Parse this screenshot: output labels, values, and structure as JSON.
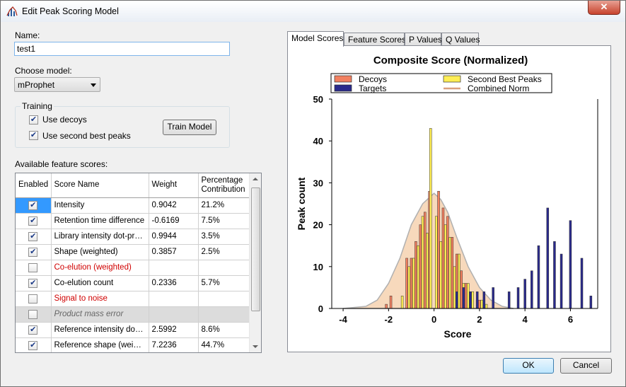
{
  "window": {
    "title": "Edit Peak Scoring Model",
    "close_label": "✕"
  },
  "name_field": {
    "label": "Name:",
    "value": "test1"
  },
  "model_select": {
    "label": "Choose model:",
    "value": "mProphet"
  },
  "training": {
    "legend": "Training",
    "use_decoys": {
      "label": "Use decoys",
      "checked": true
    },
    "use_second_best": {
      "label": "Use second best peaks",
      "checked": true
    },
    "train_button": "Train Model"
  },
  "features": {
    "label": "Available feature scores:",
    "columns": [
      "Enabled",
      "Score Name",
      "Weight",
      "Percentage Contribution"
    ],
    "rows": [
      {
        "enabled": true,
        "name": "Intensity",
        "weight": "0.9042",
        "pct": "21.2%",
        "style": "sel"
      },
      {
        "enabled": true,
        "name": "Retention time difference",
        "weight": "-0.6169",
        "pct": "7.5%",
        "style": ""
      },
      {
        "enabled": true,
        "name": "Library intensity dot-product",
        "weight": "0.9944",
        "pct": "3.5%",
        "style": ""
      },
      {
        "enabled": true,
        "name": "Shape (weighted)",
        "weight": "0.3857",
        "pct": "2.5%",
        "style": ""
      },
      {
        "enabled": false,
        "name": "Co-elution (weighted)",
        "weight": "",
        "pct": "",
        "style": "red"
      },
      {
        "enabled": true,
        "name": "Co-elution count",
        "weight": "0.2336",
        "pct": "5.7%",
        "style": ""
      },
      {
        "enabled": false,
        "name": "Signal to noise",
        "weight": "",
        "pct": "",
        "style": "red"
      },
      {
        "enabled": false,
        "name": "Product mass error",
        "weight": "",
        "pct": "",
        "style": "gray"
      },
      {
        "enabled": true,
        "name": "Reference intensity dot-pr...",
        "weight": "2.5992",
        "pct": "8.6%",
        "style": ""
      },
      {
        "enabled": true,
        "name": "Reference shape (weight...",
        "weight": "7.2236",
        "pct": "44.7%",
        "style": ""
      }
    ]
  },
  "tabs": [
    "Model Scores",
    "Feature Scores",
    "P Values",
    "Q Values"
  ],
  "buttons": {
    "ok": "OK",
    "cancel": "Cancel"
  },
  "colors": {
    "decoys": "#f28060",
    "second_best": "#ffee55",
    "targets": "#2a2a8c",
    "combined_norm": "#f6d2b0"
  },
  "chart_data": {
    "type": "bar",
    "title": "Composite Score (Normalized)",
    "xlabel": "Score",
    "ylabel": "Peak count",
    "xlim": [
      -4.5,
      7.2
    ],
    "ylim": [
      0,
      50
    ],
    "xticks": [
      "-4",
      "-2",
      "0",
      "2",
      "4",
      "6"
    ],
    "yticks": [
      "0",
      "10",
      "20",
      "30",
      "40",
      "50"
    ],
    "legend": [
      "Decoys",
      "Second Best Peaks",
      "Targets",
      "Combined Norm"
    ],
    "series": [
      {
        "name": "Decoys",
        "x": [
          -2.1,
          -1.9,
          -1.2,
          -1.0,
          -0.8,
          -0.6,
          -0.4,
          -0.2,
          0.2,
          0.4,
          0.6,
          0.8,
          1.0,
          1.2,
          1.4,
          1.6,
          2.0
        ],
        "values": [
          1,
          3,
          12,
          12,
          16,
          20,
          23,
          28,
          28,
          24,
          22,
          17,
          13,
          9,
          6,
          3,
          2
        ]
      },
      {
        "name": "Second Best Peaks",
        "x": [
          -1.4,
          -1.1,
          -0.9,
          -0.7,
          -0.5,
          -0.3,
          -0.15,
          0.1,
          0.3,
          0.5,
          0.7,
          0.9,
          1.1,
          1.3,
          1.5,
          1.7,
          1.9,
          2.1,
          2.3
        ],
        "values": [
          3,
          10,
          12,
          15,
          22,
          18,
          43,
          22,
          16,
          20,
          17,
          10,
          13,
          6,
          6,
          4,
          2,
          2,
          1
        ]
      },
      {
        "name": "Targets",
        "x": [
          1.0,
          1.3,
          1.6,
          1.9,
          2.2,
          2.6,
          3.3,
          3.7,
          4.0,
          4.3,
          4.6,
          5.0,
          5.3,
          5.6,
          6.0,
          6.5,
          6.9
        ],
        "values": [
          4,
          5,
          4,
          4,
          4,
          5,
          4,
          5,
          7,
          9,
          15,
          24,
          16,
          13,
          21,
          12,
          3
        ]
      }
    ],
    "combined_norm": {
      "name": "Combined Norm",
      "x": [
        -4,
        -3,
        -2.5,
        -2,
        -1.5,
        -1,
        -0.5,
        0,
        0.3,
        0.6,
        1,
        1.5,
        2,
        2.5,
        3,
        3.5
      ],
      "values": [
        0,
        0.5,
        2,
        6,
        12,
        20,
        25,
        27.5,
        26,
        23,
        17,
        10,
        5,
        2,
        0.5,
        0
      ]
    }
  }
}
